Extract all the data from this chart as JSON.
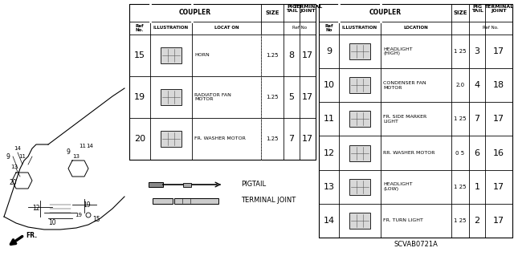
{
  "bg_color": "#ffffff",
  "diagram_code": "SCVAB0721A",
  "left_table": {
    "rows": [
      {
        "ref": "15",
        "location": "HORN",
        "size": "1.25",
        "pig": "8",
        "term": "17"
      },
      {
        "ref": "19",
        "location": "RADIATOR FAN\nMOTOR",
        "size": "1.25",
        "pig": "5",
        "term": "17"
      },
      {
        "ref": "20",
        "location": "FR. WASHER MOTOR",
        "size": "1.25",
        "pig": "7",
        "term": "17"
      }
    ]
  },
  "right_table": {
    "rows": [
      {
        "ref": "9",
        "location": "HEADLIGHT\n(HIGH)",
        "size": "1 25",
        "pig": "3",
        "term": "17"
      },
      {
        "ref": "10",
        "location": "CONDENSER FAN\nMOTOR",
        "size": "2.0",
        "pig": "4",
        "term": "18"
      },
      {
        "ref": "11",
        "location": "FR. SIDE MARKER\nLIGHT",
        "size": "1 25",
        "pig": "7",
        "term": "17"
      },
      {
        "ref": "12",
        "location": "RR. WASHER MOTOR",
        "size": "0 5",
        "pig": "6",
        "term": "16"
      },
      {
        "ref": "13",
        "location": "HEADLIGHT\n(LOW)",
        "size": "1 25",
        "pig": "1",
        "term": "17"
      },
      {
        "ref": "14",
        "location": "FR. TURN LIGHT",
        "size": "1 25",
        "pig": "2",
        "term": "17"
      }
    ]
  }
}
